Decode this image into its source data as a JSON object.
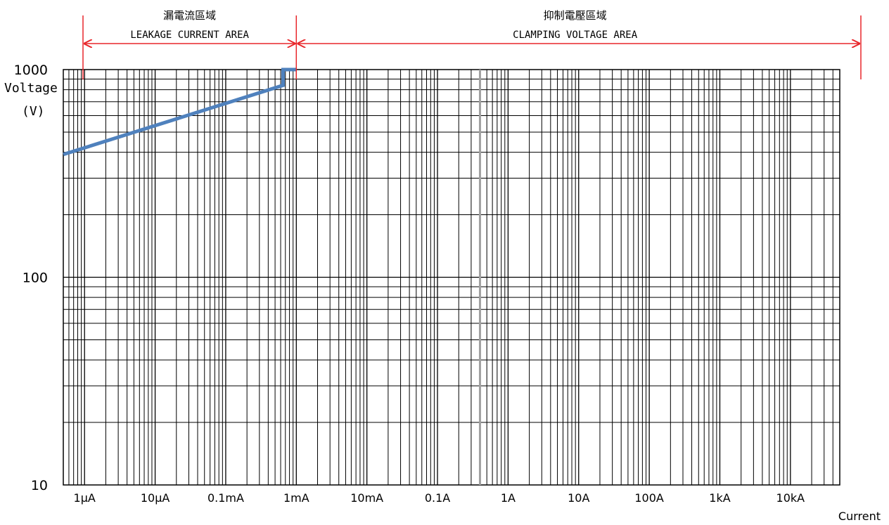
{
  "chart_data": {
    "type": "line",
    "title": "",
    "xlabel": "Current",
    "ylabel": "Voltage\n(V)",
    "x_scale": "log",
    "y_scale": "log",
    "xlim": [
      "0.5µA",
      "50kA"
    ],
    "ylim": [
      10,
      1000
    ],
    "grid": true,
    "x_ticks": [
      "1μA",
      "10μA",
      "0.1mA",
      "1mA",
      "10mA",
      "0.1A",
      "1A",
      "10A",
      "100A",
      "1kA",
      "10kA"
    ],
    "y_ticks": [
      "10",
      "100",
      "1000"
    ],
    "series": [
      {
        "color": "#4f81bd",
        "points": [
          {
            "x_A": 5e-07,
            "y_V": 390
          },
          {
            "x_A": 0.00065,
            "y_V": 840
          },
          {
            "x_A": 0.00065,
            "y_V": 1000
          },
          {
            "x_A": 0.001,
            "y_V": 1000
          }
        ]
      }
    ],
    "regions": [
      {
        "label_zh": "漏電流區域",
        "label_en": "LEAKAGE CURRENT AREA",
        "from_A": 5e-07,
        "to_A": 0.001
      },
      {
        "label_zh": "抑制電壓區域",
        "label_en": "CLAMPING VOLTAGE AREA",
        "from_A": 0.001,
        "to_A": 50000
      }
    ],
    "region_color": "#e8262a",
    "highlight_x_A": 0.4,
    "highlight_color": "#a0a0a0"
  }
}
